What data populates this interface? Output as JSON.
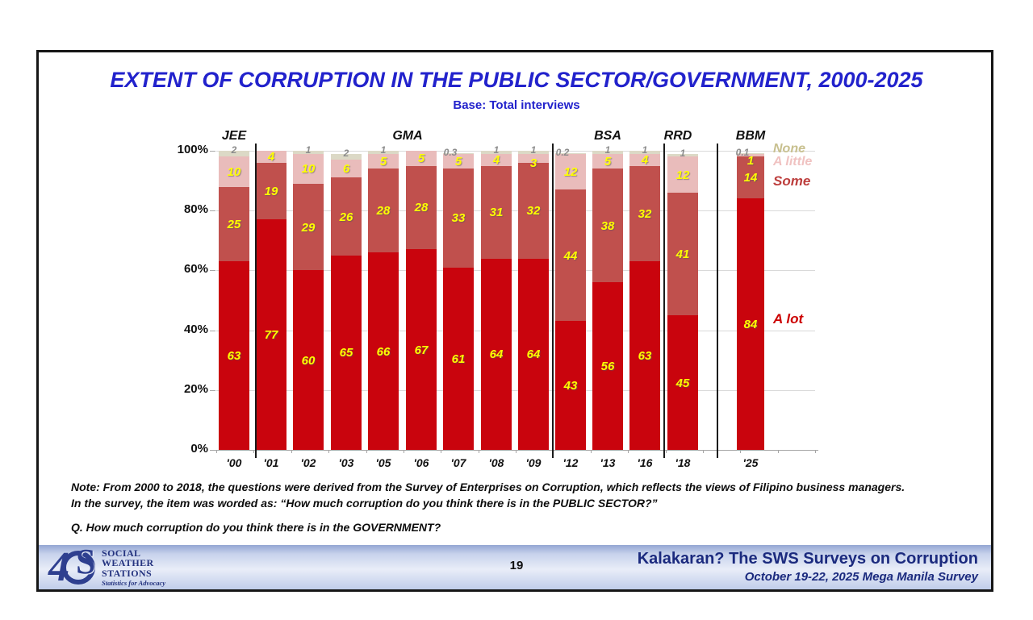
{
  "slide": {
    "title": "EXTENT OF CORRUPTION IN THE PUBLIC SECTOR/GOVERNMENT, 2000-2025",
    "subtitle": "Base: Total interviews",
    "note_line1": "Note: From 2000 to 2018, the questions were derived from the Survey of Enterprises on Corruption, which reflects the views of Filipino business managers.",
    "note_line2": "In the survey, the item was worded as: “How much corruption do you think there is in the PUBLIC SECTOR?”",
    "question": "Q. How much corruption do you think there is in the GOVERNMENT?"
  },
  "chart_data": {
    "type": "bar",
    "stacked": true,
    "title": "EXTENT OF CORRUPTION IN THE PUBLIC SECTOR/GOVERNMENT, 2000-2025",
    "subtitle": "Base: Total interviews",
    "categories": [
      "'00",
      "'01",
      "'02",
      "'03",
      "'05",
      "'06",
      "'07",
      "'08",
      "'09",
      "'12",
      "'13",
      "'16",
      "'18",
      "'25"
    ],
    "series": [
      {
        "name": "A lot",
        "color": "#c9040d",
        "label_color": "#ffff00",
        "values": [
          63,
          77,
          60,
          65,
          66,
          67,
          61,
          64,
          64,
          43,
          56,
          63,
          45,
          84
        ]
      },
      {
        "name": "Some",
        "color": "#c0504d",
        "label_color": "#ffff00",
        "values": [
          25,
          19,
          29,
          26,
          28,
          28,
          33,
          31,
          32,
          44,
          38,
          32,
          41,
          14
        ]
      },
      {
        "name": "A little",
        "color": "#e9bcbb",
        "label_color": "#ffff00",
        "values": [
          10,
          4,
          10,
          6,
          5,
          5,
          5,
          4,
          3,
          12,
          5,
          4,
          12,
          1
        ]
      },
      {
        "name": "None",
        "color": "#dcd9c6",
        "label_color": "#8c8c8c",
        "values": [
          2,
          null,
          1,
          2,
          1,
          null,
          0.3,
          1,
          1,
          0.2,
          1,
          1,
          1,
          0.1
        ]
      }
    ],
    "eras": [
      "JEE",
      "GMA",
      "BSA",
      "RRD",
      "BBM"
    ],
    "y_ticks": [
      "0%",
      "20%",
      "40%",
      "60%",
      "80%",
      "100%"
    ],
    "ylim": [
      0,
      100
    ],
    "grid": true,
    "legend": {
      "position": "right",
      "entries": [
        {
          "label": "None",
          "color": "#c8c08f"
        },
        {
          "label": "A little",
          "color": "#f0c2c1"
        },
        {
          "label": "Some",
          "color": "#bd3f3e"
        },
        {
          "label": "A lot",
          "color": "#cc0000"
        }
      ]
    }
  },
  "footer": {
    "page_number": "19",
    "title": "Kalakaran? The SWS Surveys on Corruption",
    "subtitle": "October 19-22, 2025 Mega Manila Survey",
    "logo": {
      "numeral": "4",
      "org_lines": [
        "SOCIAL",
        "WEATHER",
        "STATIONS"
      ],
      "tagline": "Statistics for Advocacy"
    }
  }
}
